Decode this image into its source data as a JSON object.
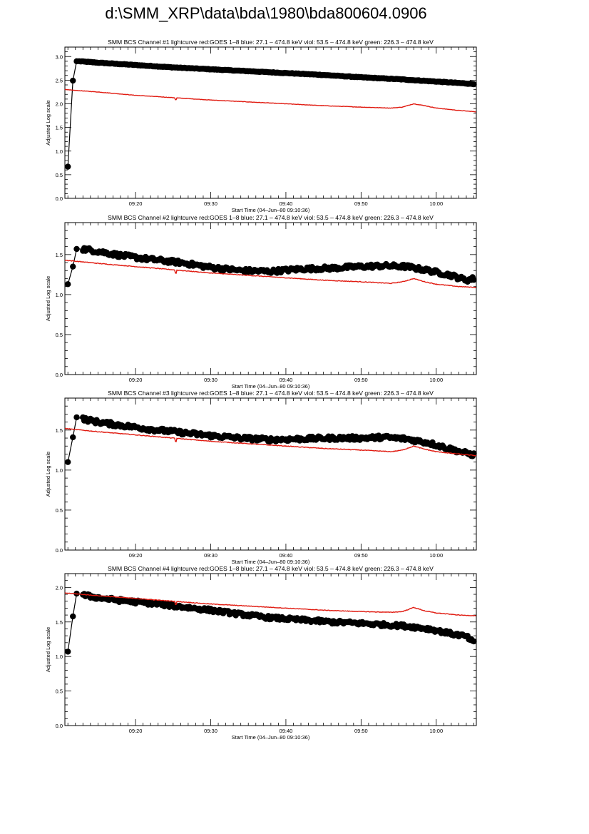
{
  "page": {
    "title": "d:\\SMM_XRP\\data\\bda\\1980\\bda800604.0906"
  },
  "colors": {
    "data": "#000000",
    "goes": "#e0190f",
    "axes": "#000000",
    "background": "#ffffff"
  },
  "chart_data": [
    {
      "type": "line",
      "title": "SMM BCS Channel #1 lightcurve  red:GOES 1–8  blue: 27.1 – 474.8 keV  viol: 53.5 – 474.8 keV  green: 226.3 – 474.8 keV",
      "xlabel": "Start Time (04–Jun–80 09:10:36)",
      "ylabel": "Adjusted Log scale",
      "xlim": [
        "09:10:36",
        "10:05:20"
      ],
      "ylim": [
        0.0,
        3.2
      ],
      "xticks": [
        "09:20",
        "09:30",
        "09:40",
        "09:50",
        "10:00"
      ],
      "yticks": [
        "0.0",
        "0.5",
        "1.0",
        "1.5",
        "2.0",
        "2.5",
        "3.0"
      ],
      "series": [
        {
          "color": "black",
          "markers": "filled-circle",
          "x": [
            "09:11:00",
            "09:11:40",
            "09:12:10",
            "09:12:30",
            "09:15:00",
            "09:20:00",
            "09:25:00",
            "09:30:00",
            "09:35:00",
            "09:40:00",
            "09:45:00",
            "09:50:00",
            "09:55:00",
            "10:00:00",
            "10:04:00",
            "10:05:00"
          ],
          "y": [
            0.67,
            2.49,
            2.9,
            2.9,
            2.87,
            2.82,
            2.77,
            2.73,
            2.69,
            2.65,
            2.61,
            2.56,
            2.52,
            2.47,
            2.43,
            2.42
          ]
        },
        {
          "color": "red",
          "markers": "none",
          "x": [
            "09:10:36",
            "09:15:00",
            "09:20:00",
            "09:25:00",
            "09:30:00",
            "09:35:00",
            "09:40:00",
            "09:45:00",
            "09:50:00",
            "09:54:00",
            "09:55:30",
            "09:57:00",
            "09:58:30",
            "10:00:00",
            "10:03:00",
            "10:05:20"
          ],
          "y": [
            2.3,
            2.25,
            2.18,
            2.13,
            2.08,
            2.04,
            2.0,
            1.96,
            1.93,
            1.91,
            1.93,
            2.0,
            1.96,
            1.91,
            1.86,
            1.83
          ]
        }
      ]
    },
    {
      "type": "line",
      "title": "SMM BCS Channel #2 lightcurve  red:GOES 1–8  blue: 27.1 – 474.8 keV  viol: 53.5 – 474.8 keV  green: 226.3 – 474.8 keV",
      "xlabel": "Start Time (04–Jun–80 09:10:36)",
      "ylabel": "Adjusted Log scale",
      "xlim": [
        "09:10:36",
        "10:05:20"
      ],
      "ylim": [
        0.0,
        1.9
      ],
      "xticks": [
        "09:20",
        "09:30",
        "09:40",
        "09:50",
        "10:00"
      ],
      "yticks": [
        "0.0",
        "0.5",
        "1.0",
        "1.5"
      ],
      "series": [
        {
          "color": "black",
          "markers": "filled-circle",
          "x": [
            "09:11:00",
            "09:11:40",
            "09:12:10",
            "09:13:00",
            "09:15:00",
            "09:18:00",
            "09:22:00",
            "09:26:00",
            "09:30:00",
            "09:34:00",
            "09:38:00",
            "09:42:00",
            "09:46:00",
            "09:50:00",
            "09:53:00",
            "09:56:00",
            "09:59:00",
            "10:02:00",
            "10:04:00",
            "10:05:00"
          ],
          "y": [
            1.13,
            1.35,
            1.57,
            1.57,
            1.54,
            1.49,
            1.44,
            1.4,
            1.34,
            1.3,
            1.29,
            1.32,
            1.33,
            1.35,
            1.36,
            1.35,
            1.3,
            1.24,
            1.18,
            1.2
          ]
        },
        {
          "color": "red",
          "markers": "none",
          "x": [
            "09:10:36",
            "09:15:00",
            "09:20:00",
            "09:25:00",
            "09:30:00",
            "09:35:00",
            "09:40:00",
            "09:45:00",
            "09:50:00",
            "09:54:00",
            "09:55:30",
            "09:57:00",
            "09:58:30",
            "10:00:00",
            "10:03:00",
            "10:05:20"
          ],
          "y": [
            1.43,
            1.39,
            1.35,
            1.31,
            1.27,
            1.24,
            1.21,
            1.18,
            1.16,
            1.14,
            1.16,
            1.2,
            1.16,
            1.13,
            1.1,
            1.09
          ]
        }
      ]
    },
    {
      "type": "line",
      "title": "SMM BCS Channel #3 lightcurve  red:GOES 1–8  blue: 27.1 – 474.8 keV  viol: 53.5 – 474.8 keV  green: 226.3 – 474.8 keV",
      "xlabel": "Start Time (04–Jun–80 09:10:36)",
      "ylabel": "Adjusted Log scale",
      "xlim": [
        "09:10:36",
        "10:05:20"
      ],
      "ylim": [
        0.0,
        1.9
      ],
      "xticks": [
        "09:20",
        "09:30",
        "09:40",
        "09:50",
        "10:00"
      ],
      "yticks": [
        "0.0",
        "0.5",
        "1.0",
        "1.5"
      ],
      "series": [
        {
          "color": "black",
          "markers": "filled-circle",
          "x": [
            "09:11:00",
            "09:11:40",
            "09:12:10",
            "09:13:00",
            "09:15:00",
            "09:18:00",
            "09:22:00",
            "09:26:00",
            "09:30:00",
            "09:34:00",
            "09:38:00",
            "09:42:00",
            "09:46:00",
            "09:50:00",
            "09:53:00",
            "09:56:00",
            "09:59:00",
            "10:02:00",
            "10:04:00",
            "10:05:00"
          ],
          "y": [
            1.1,
            1.41,
            1.66,
            1.64,
            1.6,
            1.56,
            1.51,
            1.47,
            1.43,
            1.4,
            1.38,
            1.39,
            1.4,
            1.4,
            1.41,
            1.39,
            1.34,
            1.26,
            1.21,
            1.19
          ]
        },
        {
          "color": "red",
          "markers": "none",
          "x": [
            "09:10:36",
            "09:15:00",
            "09:20:00",
            "09:25:00",
            "09:30:00",
            "09:35:00",
            "09:40:00",
            "09:45:00",
            "09:50:00",
            "09:54:00",
            "09:55:30",
            "09:57:00",
            "09:58:30",
            "10:00:00",
            "10:03:00",
            "10:05:20"
          ],
          "y": [
            1.52,
            1.48,
            1.44,
            1.4,
            1.36,
            1.33,
            1.3,
            1.27,
            1.25,
            1.23,
            1.25,
            1.3,
            1.26,
            1.23,
            1.2,
            1.18
          ]
        }
      ]
    },
    {
      "type": "line",
      "title": "SMM BCS Channel #4 lightcurve  red:GOES 1–8  blue: 27.1 – 474.8 keV  viol: 53.5 – 474.8 keV  green: 226.3 – 474.8 keV",
      "xlabel": "Start Time (04–Jun–80 09:10:36)",
      "ylabel": "Adjusted Log scale",
      "xlim": [
        "09:10:36",
        "10:05:20"
      ],
      "ylim": [
        0.0,
        2.2
      ],
      "xticks": [
        "09:20",
        "09:30",
        "09:40",
        "09:50",
        "10:00"
      ],
      "yticks": [
        "0.0",
        "0.5",
        "1.0",
        "1.5",
        "2.0"
      ],
      "series": [
        {
          "color": "black",
          "markers": "filled-circle",
          "x": [
            "09:11:00",
            "09:11:40",
            "09:12:10",
            "09:13:00",
            "09:15:00",
            "09:18:00",
            "09:22:00",
            "09:26:00",
            "09:30:00",
            "09:34:00",
            "09:38:00",
            "09:42:00",
            "09:46:00",
            "09:50:00",
            "09:53:00",
            "09:56:00",
            "09:59:00",
            "10:02:00",
            "10:04:00",
            "10:05:00"
          ],
          "y": [
            1.07,
            1.58,
            1.91,
            1.89,
            1.85,
            1.81,
            1.77,
            1.72,
            1.67,
            1.61,
            1.56,
            1.53,
            1.5,
            1.48,
            1.46,
            1.44,
            1.4,
            1.33,
            1.29,
            1.2
          ]
        },
        {
          "color": "red",
          "markers": "none",
          "x": [
            "09:10:36",
            "09:15:00",
            "09:20:00",
            "09:25:00",
            "09:30:00",
            "09:35:00",
            "09:40:00",
            "09:45:00",
            "09:50:00",
            "09:54:00",
            "09:55:30",
            "09:57:00",
            "09:58:30",
            "10:00:00",
            "10:03:00",
            "10:05:20"
          ],
          "y": [
            1.92,
            1.88,
            1.84,
            1.8,
            1.76,
            1.73,
            1.7,
            1.67,
            1.65,
            1.64,
            1.65,
            1.71,
            1.66,
            1.63,
            1.6,
            1.59
          ]
        }
      ]
    }
  ]
}
